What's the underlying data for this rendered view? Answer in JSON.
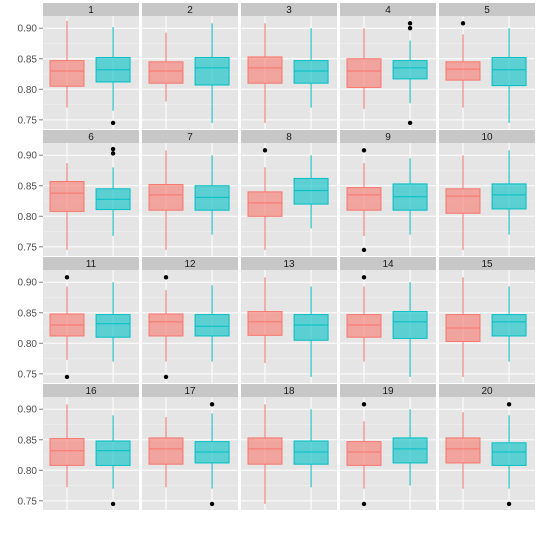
{
  "chart_data": {
    "type": "boxplot",
    "layout": {
      "rows": 4,
      "cols": 5
    },
    "ylim": [
      0.735,
      0.92
    ],
    "y_ticks": [
      0.75,
      0.8,
      0.85,
      0.9
    ],
    "y_tick_labels": [
      "0.75",
      "0.80",
      "0.85",
      "0.90"
    ],
    "grid": true,
    "series_colors": [
      "#F8766D",
      "#00BFC4"
    ],
    "panels": [
      {
        "label": "1",
        "boxes": [
          {
            "lo": 0.77,
            "q1": 0.805,
            "med": 0.83,
            "q3": 0.847,
            "hi": 0.912,
            "outliers": []
          },
          {
            "lo": 0.765,
            "q1": 0.812,
            "med": 0.832,
            "q3": 0.852,
            "hi": 0.902,
            "outliers": [
              0.745
            ]
          }
        ]
      },
      {
        "label": "2",
        "boxes": [
          {
            "lo": 0.78,
            "q1": 0.81,
            "med": 0.83,
            "q3": 0.845,
            "hi": 0.893,
            "outliers": []
          },
          {
            "lo": 0.745,
            "q1": 0.807,
            "med": 0.835,
            "q3": 0.852,
            "hi": 0.908,
            "outliers": []
          }
        ]
      },
      {
        "label": "3",
        "boxes": [
          {
            "lo": 0.745,
            "q1": 0.81,
            "med": 0.835,
            "q3": 0.853,
            "hi": 0.908,
            "outliers": []
          },
          {
            "lo": 0.77,
            "q1": 0.81,
            "med": 0.83,
            "q3": 0.847,
            "hi": 0.9,
            "outliers": []
          }
        ]
      },
      {
        "label": "4",
        "boxes": [
          {
            "lo": 0.768,
            "q1": 0.803,
            "med": 0.83,
            "q3": 0.85,
            "hi": 0.9,
            "outliers": []
          },
          {
            "lo": 0.777,
            "q1": 0.817,
            "med": 0.835,
            "q3": 0.847,
            "hi": 0.88,
            "outliers": [
              0.908,
              0.9,
              0.745
            ]
          }
        ]
      },
      {
        "label": "5",
        "boxes": [
          {
            "lo": 0.77,
            "q1": 0.815,
            "med": 0.833,
            "q3": 0.845,
            "hi": 0.89,
            "outliers": [
              0.908
            ]
          },
          {
            "lo": 0.745,
            "q1": 0.806,
            "med": 0.832,
            "q3": 0.852,
            "hi": 0.9,
            "outliers": []
          }
        ]
      },
      {
        "label": "6",
        "boxes": [
          {
            "lo": 0.745,
            "q1": 0.808,
            "med": 0.838,
            "q3": 0.857,
            "hi": 0.887,
            "outliers": []
          },
          {
            "lo": 0.768,
            "q1": 0.811,
            "med": 0.828,
            "q3": 0.845,
            "hi": 0.88,
            "outliers": [
              0.91,
              0.903
            ]
          }
        ]
      },
      {
        "label": "7",
        "boxes": [
          {
            "lo": 0.745,
            "q1": 0.81,
            "med": 0.835,
            "q3": 0.852,
            "hi": 0.908,
            "outliers": []
          },
          {
            "lo": 0.77,
            "q1": 0.81,
            "med": 0.831,
            "q3": 0.85,
            "hi": 0.9,
            "outliers": []
          }
        ]
      },
      {
        "label": "8",
        "boxes": [
          {
            "lo": 0.745,
            "q1": 0.8,
            "med": 0.822,
            "q3": 0.84,
            "hi": 0.88,
            "outliers": [
              0.908
            ]
          },
          {
            "lo": 0.78,
            "q1": 0.82,
            "med": 0.842,
            "q3": 0.862,
            "hi": 0.9,
            "outliers": []
          }
        ]
      },
      {
        "label": "9",
        "boxes": [
          {
            "lo": 0.768,
            "q1": 0.81,
            "med": 0.835,
            "q3": 0.847,
            "hi": 0.887,
            "outliers": [
              0.908,
              0.745
            ]
          },
          {
            "lo": 0.77,
            "q1": 0.81,
            "med": 0.832,
            "q3": 0.853,
            "hi": 0.895,
            "outliers": []
          }
        ]
      },
      {
        "label": "10",
        "boxes": [
          {
            "lo": 0.745,
            "q1": 0.805,
            "med": 0.833,
            "q3": 0.845,
            "hi": 0.9,
            "outliers": []
          },
          {
            "lo": 0.77,
            "q1": 0.812,
            "med": 0.835,
            "q3": 0.853,
            "hi": 0.908,
            "outliers": []
          }
        ]
      },
      {
        "label": "11",
        "boxes": [
          {
            "lo": 0.773,
            "q1": 0.812,
            "med": 0.83,
            "q3": 0.848,
            "hi": 0.893,
            "outliers": [
              0.908,
              0.745
            ]
          },
          {
            "lo": 0.77,
            "q1": 0.81,
            "med": 0.832,
            "q3": 0.847,
            "hi": 0.9,
            "outliers": []
          }
        ]
      },
      {
        "label": "12",
        "boxes": [
          {
            "lo": 0.77,
            "q1": 0.812,
            "med": 0.835,
            "q3": 0.848,
            "hi": 0.887,
            "outliers": [
              0.908,
              0.745
            ]
          },
          {
            "lo": 0.77,
            "q1": 0.812,
            "med": 0.828,
            "q3": 0.847,
            "hi": 0.895,
            "outliers": []
          }
        ]
      },
      {
        "label": "13",
        "boxes": [
          {
            "lo": 0.768,
            "q1": 0.813,
            "med": 0.835,
            "q3": 0.852,
            "hi": 0.908,
            "outliers": []
          },
          {
            "lo": 0.745,
            "q1": 0.805,
            "med": 0.83,
            "q3": 0.847,
            "hi": 0.893,
            "outliers": []
          }
        ]
      },
      {
        "label": "14",
        "boxes": [
          {
            "lo": 0.77,
            "q1": 0.81,
            "med": 0.83,
            "q3": 0.847,
            "hi": 0.893,
            "outliers": [
              0.908
            ]
          },
          {
            "lo": 0.745,
            "q1": 0.808,
            "med": 0.835,
            "q3": 0.852,
            "hi": 0.9,
            "outliers": []
          }
        ]
      },
      {
        "label": "15",
        "boxes": [
          {
            "lo": 0.745,
            "q1": 0.803,
            "med": 0.825,
            "q3": 0.847,
            "hi": 0.908,
            "outliers": []
          },
          {
            "lo": 0.77,
            "q1": 0.812,
            "med": 0.835,
            "q3": 0.847,
            "hi": 0.893,
            "outliers": []
          }
        ]
      },
      {
        "label": "16",
        "boxes": [
          {
            "lo": 0.772,
            "q1": 0.808,
            "med": 0.832,
            "q3": 0.852,
            "hi": 0.908,
            "outliers": []
          },
          {
            "lo": 0.77,
            "q1": 0.808,
            "med": 0.832,
            "q3": 0.848,
            "hi": 0.89,
            "outliers": [
              0.745
            ]
          }
        ]
      },
      {
        "label": "17",
        "boxes": [
          {
            "lo": 0.772,
            "q1": 0.81,
            "med": 0.835,
            "q3": 0.853,
            "hi": 0.887,
            "outliers": []
          },
          {
            "lo": 0.77,
            "q1": 0.812,
            "med": 0.83,
            "q3": 0.847,
            "hi": 0.893,
            "outliers": [
              0.908,
              0.745
            ]
          }
        ]
      },
      {
        "label": "18",
        "boxes": [
          {
            "lo": 0.745,
            "q1": 0.81,
            "med": 0.835,
            "q3": 0.853,
            "hi": 0.908,
            "outliers": []
          },
          {
            "lo": 0.772,
            "q1": 0.81,
            "med": 0.83,
            "q3": 0.848,
            "hi": 0.9,
            "outliers": []
          }
        ]
      },
      {
        "label": "19",
        "boxes": [
          {
            "lo": 0.77,
            "q1": 0.808,
            "med": 0.83,
            "q3": 0.847,
            "hi": 0.88,
            "outliers": [
              0.908,
              0.745
            ]
          },
          {
            "lo": 0.775,
            "q1": 0.812,
            "med": 0.835,
            "q3": 0.853,
            "hi": 0.9,
            "outliers": []
          }
        ]
      },
      {
        "label": "20",
        "boxes": [
          {
            "lo": 0.77,
            "q1": 0.812,
            "med": 0.835,
            "q3": 0.853,
            "hi": 0.895,
            "outliers": []
          },
          {
            "lo": 0.77,
            "q1": 0.808,
            "med": 0.83,
            "q3": 0.845,
            "hi": 0.89,
            "outliers": [
              0.908,
              0.745
            ]
          }
        ]
      }
    ]
  }
}
